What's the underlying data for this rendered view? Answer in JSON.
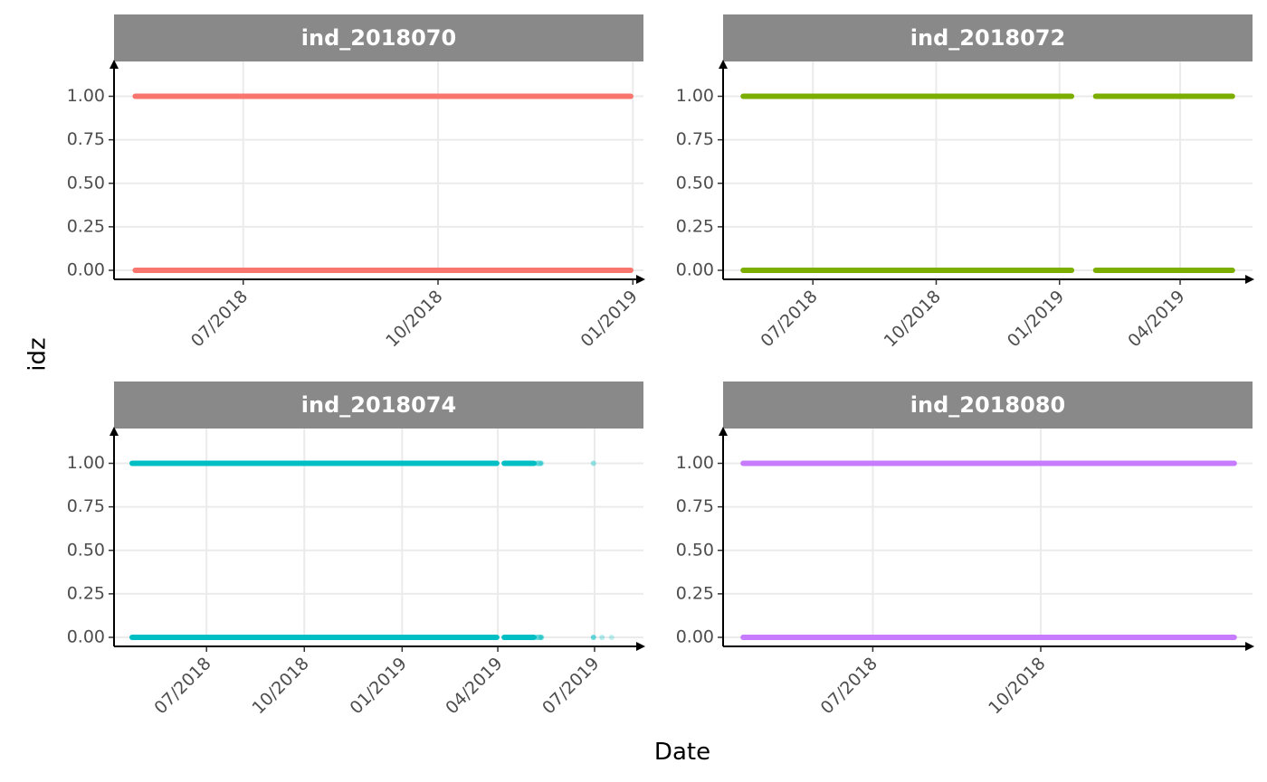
{
  "chart_data": {
    "type": "scatter",
    "xlabel": "Date",
    "ylabel": "idz",
    "y_ticks": [
      "0.00",
      "0.25",
      "0.50",
      "0.75",
      "1.00"
    ],
    "ylim": [
      0,
      1.2
    ],
    "grid": true,
    "legend": "none",
    "panels": [
      {
        "name": "ind_2018070",
        "color": "#F8766D",
        "xlim": [
          "2018-05-01",
          "2019-01-06"
        ],
        "x_ticks": [
          {
            "date": "2018-07-01",
            "label": "07/2018"
          },
          {
            "date": "2018-10-01",
            "label": "10/2018"
          },
          {
            "date": "2019-01-01",
            "label": "01/2019"
          }
        ],
        "y_values": [
          0,
          1
        ],
        "segments": [
          {
            "start": "2018-05-11",
            "end": "2018-12-31",
            "opacity": 1
          }
        ]
      },
      {
        "name": "ind_2018072",
        "color": "#7CAE00",
        "xlim": [
          "2018-04-25",
          "2019-05-25"
        ],
        "x_ticks": [
          {
            "date": "2018-07-01",
            "label": "07/2018"
          },
          {
            "date": "2018-10-01",
            "label": "10/2018"
          },
          {
            "date": "2019-01-01",
            "label": "01/2019"
          },
          {
            "date": "2019-04-01",
            "label": "04/2019"
          }
        ],
        "y_values": [
          0,
          1
        ],
        "segments": [
          {
            "start": "2018-05-10",
            "end": "2019-01-10",
            "opacity": 1
          },
          {
            "start": "2019-01-28",
            "end": "2019-05-10",
            "opacity": 1
          }
        ]
      },
      {
        "name": "ind_2018074",
        "color": "#00BFC4",
        "xlim": [
          "2018-04-05",
          "2019-08-16"
        ],
        "x_ticks": [
          {
            "date": "2018-07-01",
            "label": "07/2018"
          },
          {
            "date": "2018-10-01",
            "label": "10/2018"
          },
          {
            "date": "2019-01-01",
            "label": "01/2019"
          },
          {
            "date": "2019-04-01",
            "label": "04/2019"
          },
          {
            "date": "2019-07-01",
            "label": "07/2019"
          }
        ],
        "y_values": [
          0,
          1
        ],
        "segments": [
          {
            "start": "2018-04-22",
            "end": "2019-03-31",
            "opacity": 1
          },
          {
            "start": "2019-04-07",
            "end": "2019-05-05",
            "opacity": 1
          },
          {
            "start": "2019-05-08",
            "end": "2019-05-11",
            "opacity": 0.6
          }
        ],
        "sparse_points": [
          {
            "date": "2019-05-12",
            "y": 0,
            "opacity": 0.5
          },
          {
            "date": "2019-05-12",
            "y": 1,
            "opacity": 0.3
          },
          {
            "date": "2019-06-30",
            "y": 0,
            "opacity": 0.6
          },
          {
            "date": "2019-06-30",
            "y": 1,
            "opacity": 0.4
          },
          {
            "date": "2019-07-08",
            "y": 0,
            "opacity": 0.3
          },
          {
            "date": "2019-07-17",
            "y": 0,
            "opacity": 0.25
          }
        ]
      },
      {
        "name": "ind_2018080",
        "color": "#C77CFF",
        "xlim": [
          "2018-04-10",
          "2019-01-25"
        ],
        "x_ticks": [
          {
            "date": "2018-07-01",
            "label": "07/2018"
          },
          {
            "date": "2018-10-01",
            "label": "10/2018"
          }
        ],
        "y_values": [
          0,
          1
        ],
        "segments": [
          {
            "start": "2018-04-21",
            "end": "2019-01-15",
            "opacity": 1
          }
        ]
      }
    ]
  }
}
